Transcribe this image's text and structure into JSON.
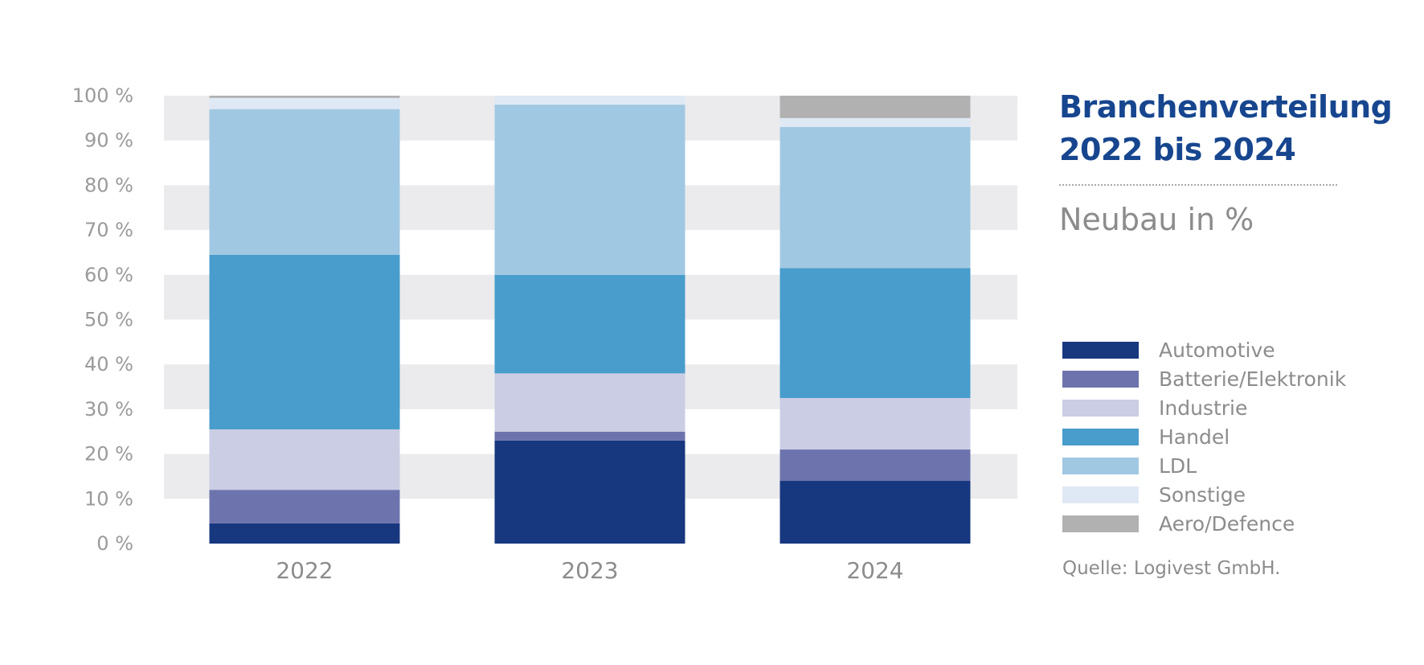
{
  "title": {
    "line1": "Branchenverteilung",
    "line2": "2022 bis 2024",
    "color": "#17468f"
  },
  "subtitle": "Neubau in %",
  "source": "Quelle: Logivest GmbH.",
  "chart_data": {
    "type": "bar",
    "stacked": true,
    "categories": [
      "2022",
      "2023",
      "2024"
    ],
    "y_ticks": [
      "0 %",
      "10 %",
      "20 %",
      "30 %",
      "40 %",
      "50 %",
      "60 %",
      "70 %",
      "80 %",
      "90 %",
      "100 %"
    ],
    "ylim": [
      0,
      100
    ],
    "grid": "alternating horizontal bands",
    "band_color": "#ebebed",
    "legend_position": "right",
    "series": [
      {
        "name": "Automotive",
        "color": "#17377f",
        "values": [
          4.5,
          23.0,
          14.0
        ]
      },
      {
        "name": "Batterie/Elektronik",
        "color": "#6d74ad",
        "values": [
          7.5,
          2.0,
          7.0
        ]
      },
      {
        "name": "Industrie",
        "color": "#cbcde4",
        "values": [
          13.5,
          13.0,
          11.5
        ]
      },
      {
        "name": "Handel",
        "color": "#489dcc",
        "values": [
          39.0,
          22.0,
          29.0
        ]
      },
      {
        "name": "LDL",
        "color": "#a1c8e2",
        "values": [
          32.5,
          38.0,
          31.5
        ]
      },
      {
        "name": "Sonstige",
        "color": "#dfe9f5",
        "values": [
          2.5,
          2.0,
          2.0
        ]
      },
      {
        "name": "Aero/Defence",
        "color": "#b1b1b1",
        "values": [
          0.5,
          0.0,
          5.0
        ]
      }
    ]
  }
}
